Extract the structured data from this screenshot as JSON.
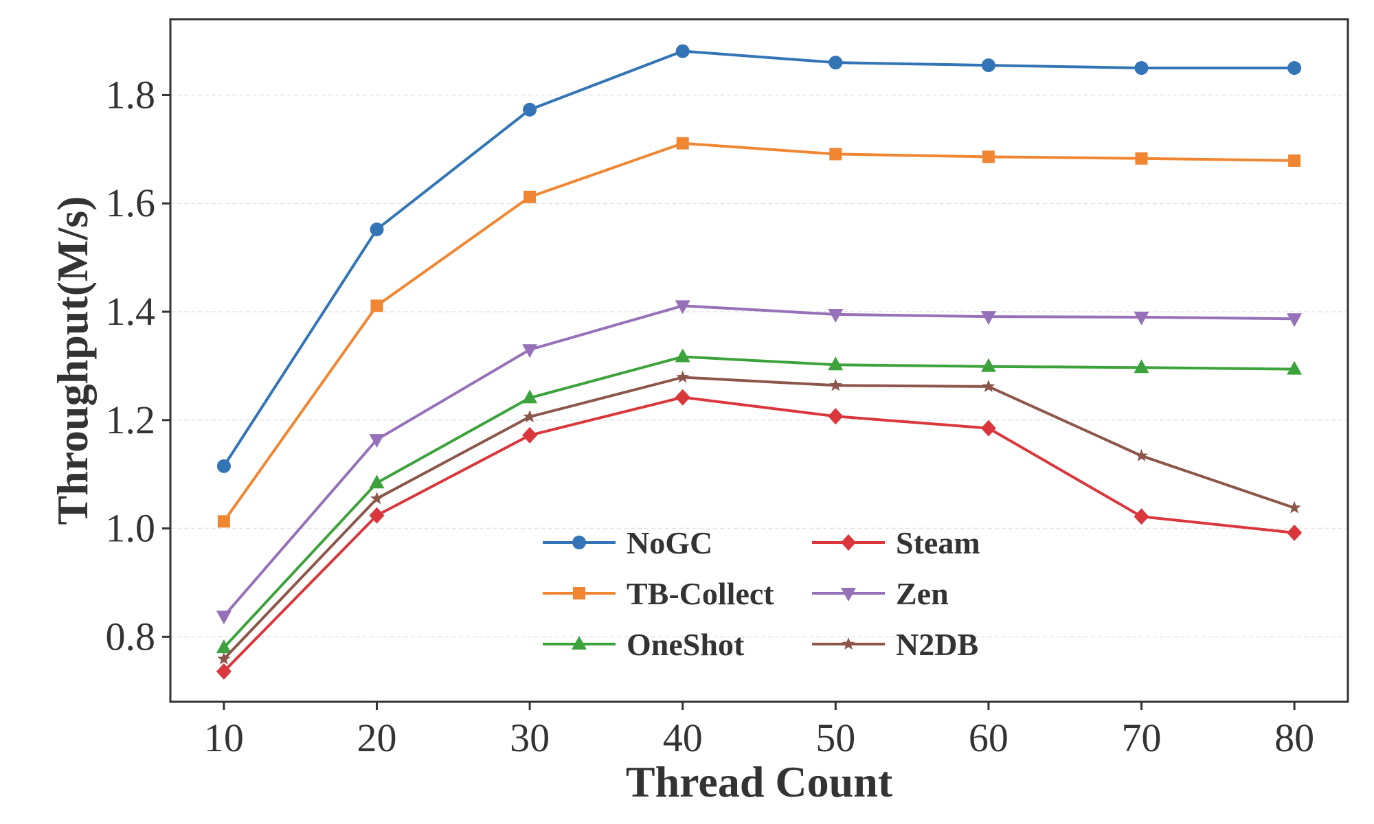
{
  "chart_data": {
    "type": "line",
    "title": "",
    "xlabel": "Thread Count",
    "ylabel": "Throughput(M/s)",
    "x": [
      10,
      20,
      30,
      40,
      50,
      60,
      70,
      80
    ],
    "xticks": [
      "10",
      "20",
      "30",
      "40",
      "50",
      "60",
      "70",
      "80"
    ],
    "xlim": [
      6.5,
      83.5
    ],
    "yticks": [
      "0.8",
      "1.0",
      "1.2",
      "1.4",
      "1.6",
      "1.8"
    ],
    "ylim": [
      0.68,
      1.94
    ],
    "grid": "horizontal, dashed, light",
    "legend": {
      "position": "lower-center",
      "columns": 2
    },
    "series": [
      {
        "name": "NoGC",
        "color": "#3274b5",
        "marker": "circle",
        "values": [
          1.115,
          1.552,
          1.773,
          1.881,
          1.86,
          1.855,
          1.85,
          1.85
        ]
      },
      {
        "name": "TB-Collect",
        "color": "#f08632",
        "marker": "square",
        "values": [
          1.013,
          1.411,
          1.612,
          1.711,
          1.691,
          1.686,
          1.683,
          1.679
        ]
      },
      {
        "name": "OneShot",
        "color": "#3ca23c",
        "marker": "triangle-up",
        "values": [
          0.78,
          1.084,
          1.241,
          1.317,
          1.302,
          1.299,
          1.297,
          1.294
        ]
      },
      {
        "name": "Steam",
        "color": "#d9373b",
        "marker": "diamond",
        "values": [
          0.736,
          1.024,
          1.172,
          1.242,
          1.207,
          1.185,
          1.022,
          0.992
        ]
      },
      {
        "name": "Zen",
        "color": "#9670b8",
        "marker": "triangle-down",
        "values": [
          0.838,
          1.164,
          1.33,
          1.411,
          1.395,
          1.391,
          1.39,
          1.387
        ]
      },
      {
        "name": "N2DB",
        "color": "#8c564b",
        "marker": "star",
        "values": [
          0.759,
          1.055,
          1.206,
          1.279,
          1.264,
          1.262,
          1.134,
          1.038
        ]
      }
    ]
  }
}
